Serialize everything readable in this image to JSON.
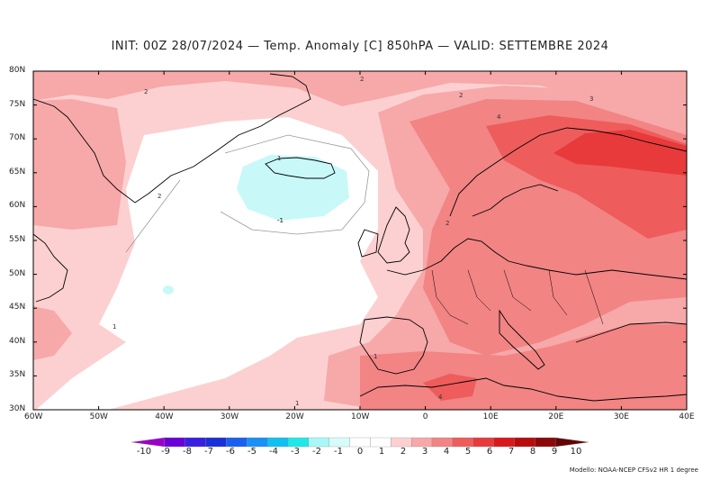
{
  "title": "INIT: 00Z 28/07/2024 — Temp. Anomaly [C] 850hPA — VALID: SETTEMBRE 2024",
  "lat_labels": [
    "80N",
    "75N",
    "70N",
    "65N",
    "60N",
    "55N",
    "50N",
    "45N",
    "40N",
    "35N",
    "30N"
  ],
  "lon_labels": [
    "60W",
    "50W",
    "40W",
    "30W",
    "20W",
    "10W",
    "0",
    "10E",
    "20E",
    "30E",
    "40E"
  ],
  "colorbar": {
    "labels": [
      "-10",
      "-9",
      "-8",
      "-7",
      "-6",
      "-5",
      "-4",
      "-3",
      "-2",
      "-1",
      "0",
      "1",
      "2",
      "3",
      "4",
      "5",
      "6",
      "7",
      "8",
      "9",
      "10"
    ],
    "colors": [
      "#9b00c8",
      "#6a00d8",
      "#3a20e0",
      "#1a30d8",
      "#1a60f0",
      "#1a90f8",
      "#10c0f0",
      "#20e8e8",
      "#a8f8f8",
      "#d8fcfc",
      "#ffffff",
      "#ffffff",
      "#fcd0d0",
      "#f7a8a8",
      "#f28484",
      "#ee5c5c",
      "#e83a3a",
      "#d81a1a",
      "#b80c0c",
      "#8c0808",
      "#640404"
    ]
  },
  "contour_labels": [
    "2",
    "2",
    "2",
    "3",
    "4",
    "1",
    "-1",
    "-1",
    "2",
    "1",
    "1",
    "1",
    "4",
    "2"
  ],
  "credit": "Modello: NOAA-NCEP CFSv2 HR 1 degree"
}
